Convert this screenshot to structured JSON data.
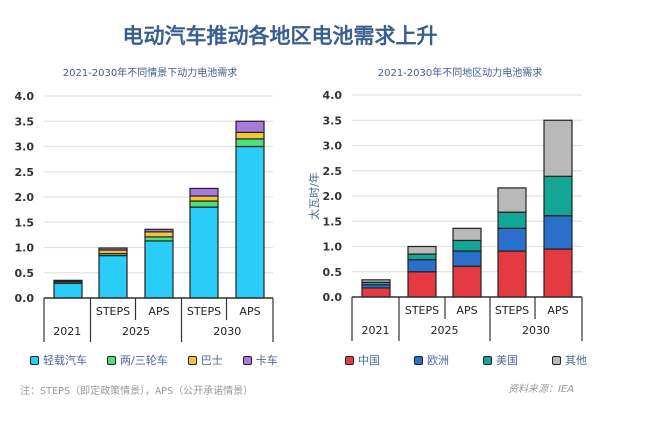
{
  "title": "电动汽车推动各地区电池需求上升",
  "note": "注：STEPS（即定政策情景），APS（公开承诺情景）",
  "source": "资料来源：IEA",
  "chart_data": [
    {
      "type": "bar",
      "stacked": true,
      "title": "2021-2030年不同情景下动力电池需求",
      "ylabel": "",
      "ylim": [
        0,
        4
      ],
      "yticks": [
        "0.0",
        "0.5",
        "1.0",
        "1.5",
        "2.0",
        "2.5",
        "3.0",
        "3.5",
        "4.0"
      ],
      "grid": true,
      "legend": "bottom",
      "categories": [
        {
          "year": "2021",
          "scenario": ""
        },
        {
          "year": "2025",
          "scenario": "STEPS"
        },
        {
          "year": "2025",
          "scenario": "APS"
        },
        {
          "year": "2030",
          "scenario": "STEPS"
        },
        {
          "year": "2030",
          "scenario": "APS"
        }
      ],
      "years": [
        "2021",
        "2025",
        "2030"
      ],
      "series": [
        {
          "name": "轻载汽车",
          "color": "#29cdf7",
          "values": [
            0.29,
            0.84,
            1.13,
            1.8,
            3.0
          ]
        },
        {
          "name": "两/三轮车",
          "color": "#4ee07a",
          "values": [
            0.03,
            0.04,
            0.08,
            0.12,
            0.15
          ]
        },
        {
          "name": "巴士",
          "color": "#f7c531",
          "values": [
            0.02,
            0.07,
            0.1,
            0.1,
            0.13
          ]
        },
        {
          "name": "卡车",
          "color": "#a77ae0",
          "values": [
            0.01,
            0.04,
            0.05,
            0.15,
            0.22
          ]
        }
      ]
    },
    {
      "type": "bar",
      "stacked": true,
      "title": "2021-2030年不同地区动力电池需求",
      "ylabel": "太瓦时/年",
      "ylim": [
        0,
        4
      ],
      "yticks": [
        "0.0",
        "0.5",
        "1.0",
        "1.5",
        "2.0",
        "2.5",
        "3.0",
        "3.5",
        "4.0"
      ],
      "grid": true,
      "legend": "bottom",
      "categories": [
        {
          "year": "2021",
          "scenario": ""
        },
        {
          "year": "2025",
          "scenario": "STEPS"
        },
        {
          "year": "2025",
          "scenario": "APS"
        },
        {
          "year": "2030",
          "scenario": "STEPS"
        },
        {
          "year": "2030",
          "scenario": "APS"
        }
      ],
      "years": [
        "2021",
        "2025",
        "2030"
      ],
      "series": [
        {
          "name": "中国",
          "color": "#e63a42",
          "values": [
            0.18,
            0.5,
            0.61,
            0.91,
            0.95
          ]
        },
        {
          "name": "欧洲",
          "color": "#2a6fc9",
          "values": [
            0.06,
            0.24,
            0.3,
            0.45,
            0.66
          ]
        },
        {
          "name": "美国",
          "color": "#13a596",
          "values": [
            0.05,
            0.11,
            0.21,
            0.32,
            0.78
          ]
        },
        {
          "name": "其他",
          "color": "#b9b9b9",
          "values": [
            0.05,
            0.15,
            0.24,
            0.48,
            1.11
          ]
        }
      ]
    }
  ]
}
